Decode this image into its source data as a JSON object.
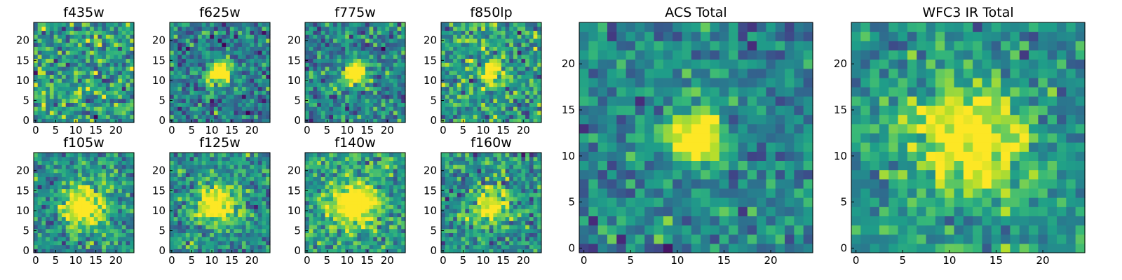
{
  "chart_data": [
    {
      "type": "heatmap",
      "title": "f435w",
      "x_ticks": [
        "0",
        "5",
        "10",
        "15",
        "20"
      ],
      "y_ticks": [
        "0",
        "5",
        "10",
        "15",
        "20"
      ],
      "xlim": [
        0,
        24
      ],
      "ylim": [
        0,
        24
      ],
      "grid_size": 25,
      "source_blob": null,
      "colormap": "viridis",
      "seed": 11
    },
    {
      "type": "heatmap",
      "title": "f625w",
      "x_ticks": [
        "0",
        "5",
        "10",
        "15",
        "20"
      ],
      "y_ticks": [
        "0",
        "5",
        "10",
        "15",
        "20"
      ],
      "xlim": [
        0,
        24
      ],
      "ylim": [
        0,
        24
      ],
      "grid_size": 25,
      "source_blob": {
        "x": 12,
        "y": 12,
        "radius": 2.0,
        "peak": 0.95
      },
      "noise_mean": 0.42,
      "noise_spread": 0.55,
      "colormap": "viridis",
      "seed": 23
    },
    {
      "type": "heatmap",
      "title": "f775w",
      "x_ticks": [
        "0",
        "5",
        "10",
        "15",
        "20"
      ],
      "y_ticks": [
        "0",
        "5",
        "10",
        "15",
        "20"
      ],
      "xlim": [
        0,
        24
      ],
      "ylim": [
        0,
        24
      ],
      "grid_size": 25,
      "source_blob": {
        "x": 12,
        "y": 12,
        "radius": 2.0,
        "peak": 0.95
      },
      "noise_mean": 0.45,
      "noise_spread": 0.55,
      "colormap": "viridis",
      "seed": 37
    },
    {
      "type": "heatmap",
      "title": "f850lp",
      "x_ticks": [
        "0",
        "5",
        "10",
        "15",
        "20"
      ],
      "y_ticks": [
        "0",
        "5",
        "10",
        "15",
        "20"
      ],
      "xlim": [
        0,
        24
      ],
      "ylim": [
        0,
        24
      ],
      "grid_size": 25,
      "source_blob": {
        "x": 12,
        "y": 12,
        "radius": 1.6,
        "peak": 0.85
      },
      "noise_mean": 0.55,
      "noise_spread": 0.6,
      "colormap": "viridis",
      "seed": 41
    },
    {
      "type": "heatmap",
      "title": "f105w",
      "x_ticks": [
        "0",
        "5",
        "10",
        "15",
        "20"
      ],
      "y_ticks": [
        "0",
        "5",
        "10",
        "15",
        "20"
      ],
      "xlim": [
        0,
        24
      ],
      "ylim": [
        0,
        24
      ],
      "grid_size": 25,
      "source_blob": {
        "x": 12,
        "y": 11,
        "radius": 3.5,
        "peak": 0.75
      },
      "noise_mean": 0.5,
      "noise_spread": 0.5,
      "colormap": "viridis",
      "seed": 53
    },
    {
      "type": "heatmap",
      "title": "f125w",
      "x_ticks": [
        "0",
        "5",
        "10",
        "15",
        "20"
      ],
      "y_ticks": [
        "0",
        "5",
        "10",
        "15",
        "20"
      ],
      "xlim": [
        0,
        24
      ],
      "ylim": [
        0,
        24
      ],
      "grid_size": 25,
      "source_blob": {
        "x": 11,
        "y": 12,
        "radius": 3.5,
        "peak": 0.7
      },
      "noise_mean": 0.5,
      "noise_spread": 0.5,
      "colormap": "viridis",
      "seed": 67
    },
    {
      "type": "heatmap",
      "title": "f140w",
      "x_ticks": [
        "0",
        "5",
        "10",
        "15",
        "20"
      ],
      "y_ticks": [
        "0",
        "5",
        "10",
        "15",
        "20"
      ],
      "xlim": [
        0,
        24
      ],
      "ylim": [
        0,
        24
      ],
      "grid_size": 25,
      "source_blob": {
        "x": 12,
        "y": 12,
        "radius": 4.0,
        "peak": 0.7
      },
      "noise_mean": 0.55,
      "noise_spread": 0.5,
      "colormap": "viridis",
      "seed": 71
    },
    {
      "type": "heatmap",
      "title": "f160w",
      "x_ticks": [
        "0",
        "5",
        "10",
        "15",
        "20"
      ],
      "y_ticks": [
        "0",
        "5",
        "10",
        "15",
        "20"
      ],
      "xlim": [
        0,
        24
      ],
      "ylim": [
        0,
        24
      ],
      "grid_size": 25,
      "source_blob": {
        "x": 12,
        "y": 11,
        "radius": 3.0,
        "peak": 0.65
      },
      "noise_mean": 0.5,
      "noise_spread": 0.55,
      "colormap": "viridis",
      "seed": 89
    },
    {
      "type": "heatmap",
      "title": "ACS Total",
      "x_ticks": [
        "0",
        "5",
        "10",
        "15",
        "20"
      ],
      "y_ticks": [
        "0",
        "5",
        "10",
        "15",
        "20"
      ],
      "xlim": [
        0,
        24
      ],
      "ylim": [
        0,
        24
      ],
      "grid_size": 25,
      "source_blob": {
        "x": 12,
        "y": 12,
        "radius": 1.8,
        "peak": 1.0
      },
      "noise_mean": 0.45,
      "noise_spread": 0.45,
      "colormap": "viridis",
      "seed": 97
    },
    {
      "type": "heatmap",
      "title": "WFC3 IR Total",
      "x_ticks": [
        "0",
        "5",
        "10",
        "15",
        "20"
      ],
      "y_ticks": [
        "0",
        "5",
        "10",
        "15",
        "20"
      ],
      "xlim": [
        0,
        24
      ],
      "ylim": [
        0,
        24
      ],
      "grid_size": 25,
      "source_blob": {
        "x": 12,
        "y": 12,
        "radius": 4.2,
        "peak": 0.65
      },
      "noise_mean": 0.5,
      "noise_spread": 0.45,
      "colormap": "viridis",
      "seed": 103
    }
  ]
}
